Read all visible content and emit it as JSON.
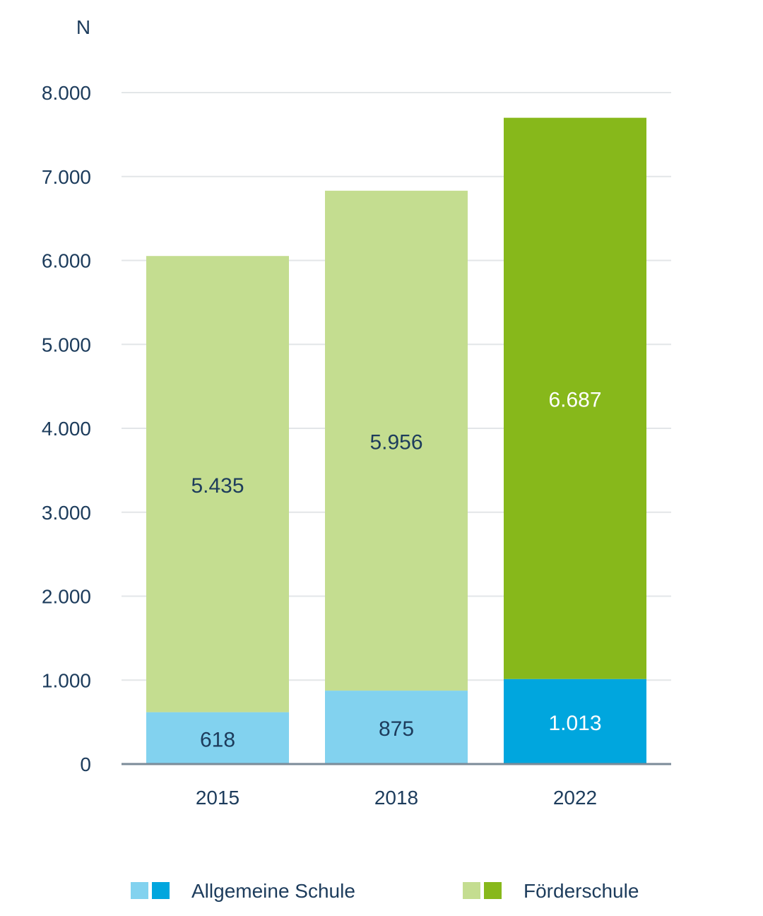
{
  "chart_data": {
    "type": "bar",
    "stacked": true,
    "unit_label": "N",
    "ylim": [
      0,
      8000
    ],
    "yticks": [
      0,
      1000,
      2000,
      3000,
      4000,
      5000,
      6000,
      7000,
      8000
    ],
    "ytick_labels": [
      "0",
      "1.000",
      "2.000",
      "3.000",
      "4.000",
      "5.000",
      "6.000",
      "7.000",
      "8.000"
    ],
    "categories": [
      "2015",
      "2018",
      "2022"
    ],
    "series": [
      {
        "name": "Allgemeine Schule",
        "values": [
          618,
          875,
          1013
        ],
        "value_labels": [
          "618",
          "875",
          "1.013"
        ],
        "colors": [
          "#82d2ef",
          "#82d2ef",
          "#00a6de"
        ],
        "label_colors": [
          "#1d3c5c",
          "#1d3c5c",
          "#ffffff"
        ]
      },
      {
        "name": "Förderschule",
        "values": [
          5435,
          5956,
          6687
        ],
        "value_labels": [
          "5.435",
          "5.956",
          "6.687"
        ],
        "colors": [
          "#c4dd90",
          "#c4dd90",
          "#87b81b"
        ],
        "label_colors": [
          "#1d3c5c",
          "#1d3c5c",
          "#ffffff"
        ]
      }
    ],
    "legend": [
      {
        "label": "Allgemeine Schule",
        "swatches": [
          "#82d2ef",
          "#00a6de"
        ]
      },
      {
        "label": "Förderschule",
        "swatches": [
          "#c4dd90",
          "#87b81b"
        ]
      }
    ],
    "legend_position": "bottom",
    "grid": true
  }
}
